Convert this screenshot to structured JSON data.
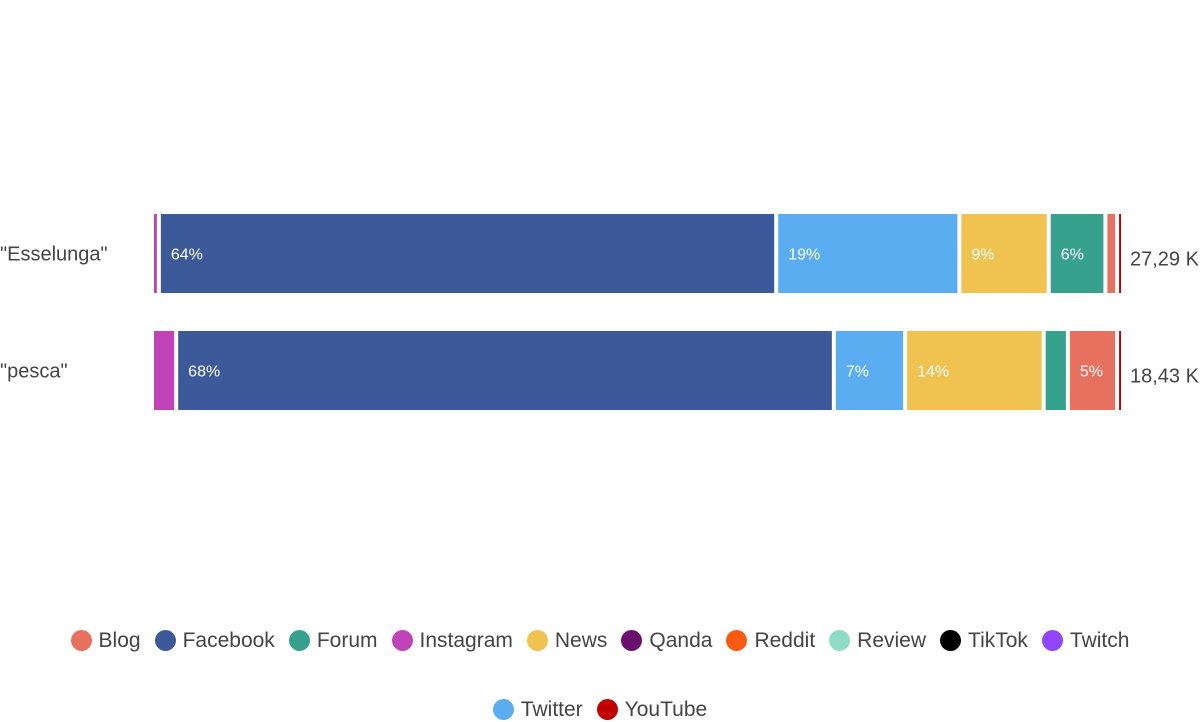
{
  "chart_data": {
    "type": "bar",
    "orientation": "horizontal",
    "stacked": true,
    "normalized": true,
    "categories": [
      "\"Esselunga\"",
      "\"pesca\""
    ],
    "totals": [
      "27,29 K",
      "18,43 K"
    ],
    "series": [
      {
        "name": "Blog",
        "color": "#e8705f",
        "values": [
          0.8,
          4.7
        ],
        "labels": [
          "",
          "5%"
        ]
      },
      {
        "name": "Facebook",
        "color": "#3c5a99",
        "values": [
          64,
          68
        ],
        "labels": [
          "64%",
          "68%"
        ]
      },
      {
        "name": "Forum",
        "color": "#36a18d",
        "values": [
          5.5,
          2.1
        ],
        "labels": [
          "6%",
          ""
        ]
      },
      {
        "name": "Instagram",
        "color": "#c043b8",
        "values": [
          0.3,
          2.1
        ],
        "labels": [
          "",
          ""
        ]
      },
      {
        "name": "News",
        "color": "#f0c24f",
        "values": [
          8.9,
          14
        ],
        "labels": [
          "9%",
          "14%"
        ]
      },
      {
        "name": "Qanda",
        "color": "#6a0f6e",
        "values": [
          0,
          0
        ],
        "labels": [
          "",
          ""
        ]
      },
      {
        "name": "Reddit",
        "color": "#fb5a12",
        "values": [
          0,
          0
        ],
        "labels": [
          "",
          ""
        ]
      },
      {
        "name": "Review",
        "color": "#8fdcc7",
        "values": [
          0,
          0
        ],
        "labels": [
          "",
          ""
        ]
      },
      {
        "name": "TikTok",
        "color": "#000000",
        "values": [
          0,
          0
        ],
        "labels": [
          "",
          ""
        ]
      },
      {
        "name": "Twitch",
        "color": "#9146ff",
        "values": [
          0,
          0
        ],
        "labels": [
          "",
          ""
        ]
      },
      {
        "name": "Twitter",
        "color": "#5aadf0",
        "values": [
          18.7,
          7
        ],
        "labels": [
          "19%",
          "7%"
        ]
      },
      {
        "name": "YouTube",
        "color": "#c00000",
        "values": [
          0.2,
          0.2
        ],
        "labels": [
          "",
          ""
        ]
      }
    ],
    "stack_order": [
      "Instagram",
      "Facebook",
      "Twitter",
      "News",
      "Forum",
      "Blog",
      "YouTube"
    ],
    "legend_position": "bottom",
    "grid": false
  }
}
